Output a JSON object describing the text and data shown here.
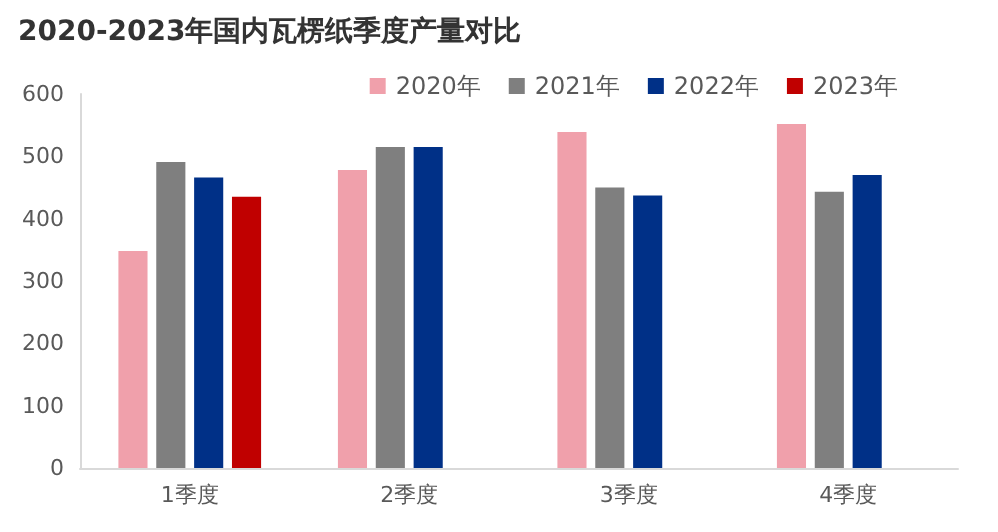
{
  "chart_data": {
    "type": "bar",
    "title": "2020-2023年国内瓦楞纸季度产量对比",
    "categories": [
      "1季度",
      "2季度",
      "3季度",
      "4季度"
    ],
    "series": [
      {
        "name": "2020年",
        "color": "#f0a0ab",
        "values": [
          348,
          478,
          539,
          552
        ]
      },
      {
        "name": "2021年",
        "color": "#7f7f7f",
        "values": [
          491,
          515,
          450,
          443
        ]
      },
      {
        "name": "2022年",
        "color": "#003087",
        "values": [
          466,
          515,
          437,
          470
        ]
      },
      {
        "name": "2023年",
        "color": "#c00000",
        "values": [
          435,
          null,
          null,
          null
        ]
      }
    ],
    "ylim": [
      0,
      600
    ],
    "yticks": [
      0,
      100,
      200,
      300,
      400,
      500,
      600
    ],
    "grid": false,
    "legend": "top right"
  }
}
